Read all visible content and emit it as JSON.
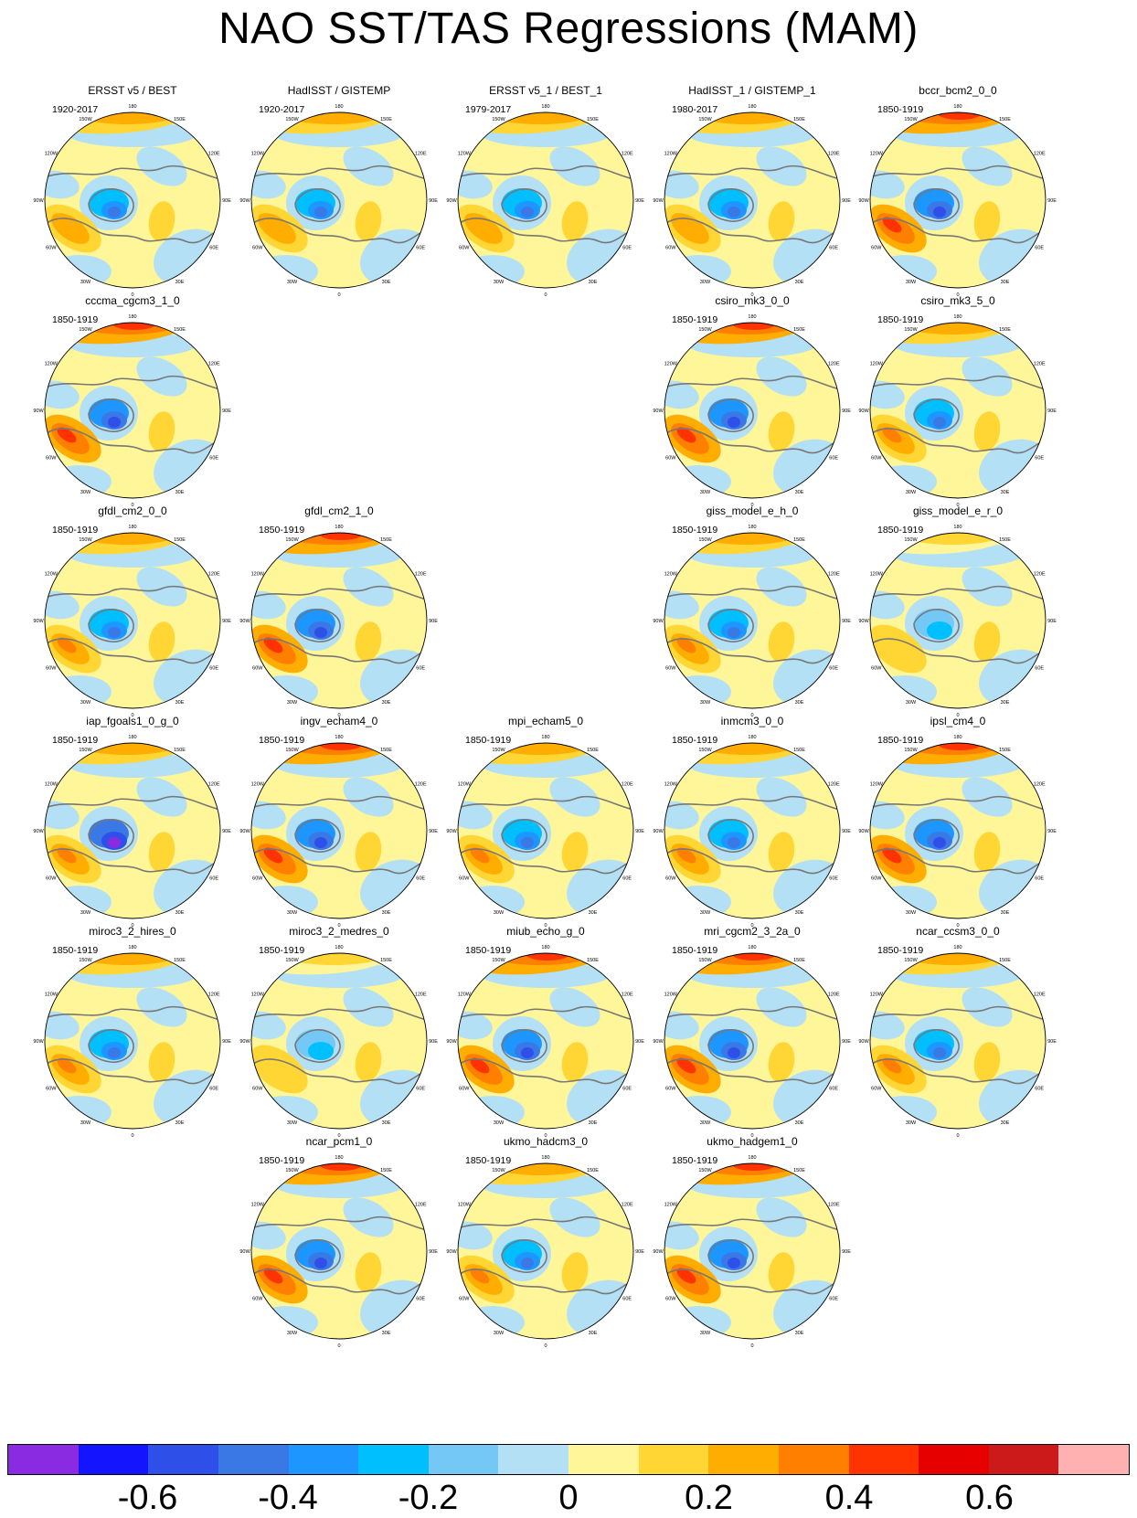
{
  "title": "NAO SST/TAS Regressions (MAM)",
  "lon_labels": [
    "180",
    "150E",
    "120E",
    "90E",
    "60E",
    "30E",
    "0",
    "30W",
    "60W",
    "90W",
    "120W",
    "150W"
  ],
  "panels": [
    {
      "name": "ERSST v5 / BEST",
      "period": "1920-2017",
      "row": 0,
      "col": 0,
      "style": "obs"
    },
    {
      "name": "HadISST / GISTEMP",
      "period": "1920-2017",
      "row": 0,
      "col": 1,
      "style": "obs"
    },
    {
      "name": "ERSST v5_1 / BEST_1",
      "period": "1979-2017",
      "row": 0,
      "col": 2,
      "style": "obs"
    },
    {
      "name": "HadISST_1 / GISTEMP_1",
      "period": "1980-2017",
      "row": 0,
      "col": 3,
      "style": "obs"
    },
    {
      "name": "bccr_bcm2_0_0",
      "period": "1850-1919",
      "row": 0,
      "col": 4,
      "style": "strong"
    },
    {
      "name": "cccma_cgcm3_1_0",
      "period": "1850-1919",
      "row": 1,
      "col": 0,
      "style": "strong"
    },
    {
      "name": "csiro_mk3_0_0",
      "period": "1850-1919",
      "row": 1,
      "col": 3,
      "style": "strong"
    },
    {
      "name": "csiro_mk3_5_0",
      "period": "1850-1919",
      "row": 1,
      "col": 4,
      "style": "mid"
    },
    {
      "name": "gfdl_cm2_0_0",
      "period": "1850-1919",
      "row": 2,
      "col": 0,
      "style": "mid"
    },
    {
      "name": "gfdl_cm2_1_0",
      "period": "1850-1919",
      "row": 2,
      "col": 1,
      "style": "strong"
    },
    {
      "name": "giss_model_e_h_0",
      "period": "1850-1919",
      "row": 2,
      "col": 3,
      "style": "mid"
    },
    {
      "name": "giss_model_e_r_0",
      "period": "1850-1919",
      "row": 2,
      "col": 4,
      "style": "weak"
    },
    {
      "name": "iap_fgoals1_0_g_0",
      "period": "1850-1919",
      "row": 3,
      "col": 0,
      "style": "purple"
    },
    {
      "name": "ingv_echam4_0",
      "period": "1850-1919",
      "row": 3,
      "col": 1,
      "style": "strong"
    },
    {
      "name": "mpi_echam5_0",
      "period": "1850-1919",
      "row": 3,
      "col": 2,
      "style": "mid"
    },
    {
      "name": "inmcm3_0_0",
      "period": "1850-1919",
      "row": 3,
      "col": 3,
      "style": "mid"
    },
    {
      "name": "ipsl_cm4_0",
      "period": "1850-1919",
      "row": 3,
      "col": 4,
      "style": "strong"
    },
    {
      "name": "miroc3_2_hires_0",
      "period": "1850-1919",
      "row": 4,
      "col": 0,
      "style": "mid"
    },
    {
      "name": "miroc3_2_medres_0",
      "period": "1850-1919",
      "row": 4,
      "col": 1,
      "style": "weak"
    },
    {
      "name": "miub_echo_g_0",
      "period": "1850-1919",
      "row": 4,
      "col": 2,
      "style": "strong"
    },
    {
      "name": "mri_cgcm2_3_2a_0",
      "period": "1850-1919",
      "row": 4,
      "col": 3,
      "style": "strong"
    },
    {
      "name": "ncar_ccsm3_0_0",
      "period": "1850-1919",
      "row": 4,
      "col": 4,
      "style": "mid"
    },
    {
      "name": "ncar_pcm1_0",
      "period": "1850-1919",
      "row": 5,
      "col": 1,
      "style": "strong"
    },
    {
      "name": "ukmo_hadcm3_0",
      "period": "1850-1919",
      "row": 5,
      "col": 2,
      "style": "mid"
    },
    {
      "name": "ukmo_hadgem1_0",
      "period": "1850-1919",
      "row": 5,
      "col": 3,
      "style": "strong"
    }
  ],
  "colorbar": {
    "colors": [
      "#8a2be2",
      "#1414ff",
      "#2f50e8",
      "#3a78e6",
      "#1e96ff",
      "#00bfff",
      "#74c8f5",
      "#b4e0f5",
      "#fff599",
      "#ffd633",
      "#ffad00",
      "#ff7f00",
      "#ff3300",
      "#e60000",
      "#cc1a1a",
      "#ffb0b0"
    ],
    "tick_values": [
      -0.6,
      -0.4,
      -0.2,
      0,
      0.2,
      0.4,
      0.6
    ],
    "tick_labels": [
      "-0.6",
      "-0.4",
      "-0.2",
      "0",
      "0.2",
      "0.4",
      "0.6"
    ]
  }
}
